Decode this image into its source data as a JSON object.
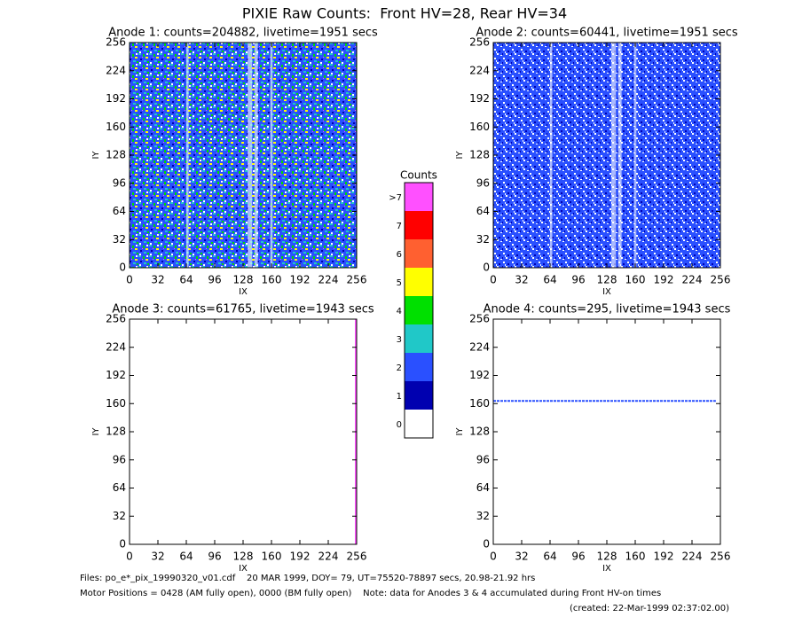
{
  "title": "PIXIE Raw Counts:  Front HV=28, Rear HV=34",
  "chart_data": [
    {
      "type": "heatmap",
      "title": "Anode 1: counts=204882, livetime=1951 secs",
      "x_label": "IX",
      "y_label": "IY",
      "xlim": [
        0,
        256
      ],
      "ylim": [
        0,
        256
      ],
      "xticks": [
        0,
        32,
        64,
        96,
        128,
        160,
        192,
        224,
        256
      ],
      "yticks": [
        0,
        32,
        64,
        96,
        128,
        160,
        192,
        224,
        256
      ]
    },
    {
      "type": "heatmap",
      "title": "Anode 2: counts=60441, livetime=1951 secs",
      "x_label": "IX",
      "y_label": "IY",
      "xlim": [
        0,
        256
      ],
      "ylim": [
        0,
        256
      ],
      "xticks": [
        0,
        32,
        64,
        96,
        128,
        160,
        192,
        224,
        256
      ],
      "yticks": [
        0,
        32,
        64,
        96,
        128,
        160,
        192,
        224,
        256
      ]
    },
    {
      "type": "heatmap",
      "title": "Anode 3: counts=61765, livetime=1943 secs",
      "x_label": "IX",
      "y_label": "IY",
      "xlim": [
        0,
        256
      ],
      "ylim": [
        0,
        256
      ],
      "xticks": [
        0,
        32,
        64,
        96,
        128,
        160,
        192,
        224,
        256
      ],
      "yticks": [
        0,
        32,
        64,
        96,
        128,
        160,
        192,
        224,
        256
      ],
      "vline": 256,
      "vline_color": "#ff50ff"
    },
    {
      "type": "heatmap",
      "title": "Anode 4: counts=295, livetime=1943 secs",
      "x_label": "IX",
      "y_label": "IY",
      "xlim": [
        0,
        256
      ],
      "ylim": [
        0,
        256
      ],
      "xticks": [
        0,
        32,
        64,
        96,
        128,
        160,
        192,
        224,
        256
      ],
      "yticks": [
        0,
        32,
        64,
        96,
        128,
        160,
        192,
        224,
        256
      ],
      "hline": 163,
      "hline_color": "#2a50ff"
    }
  ],
  "colorbar": {
    "title": "Counts",
    "labels": [
      "0",
      "1",
      "2",
      "3",
      "4",
      "5",
      "6",
      "7",
      ">7"
    ],
    "colors": [
      "#ffffff",
      "#0000b0",
      "#2a50ff",
      "#20c8c8",
      "#00e000",
      "#ffff00",
      "#ff6030",
      "#ff0000",
      "#ff50ff"
    ]
  },
  "footer": {
    "files": "Files: po_e*_pix_19990320_v01.cdf    20 MAR 1999, DOY= 79, UT=75520-78897 secs, 20.98-21.92 hrs",
    "motor": "Motor Positions = 0428 (AM fully open), 0000 (BM fully open)    Note: data for Anodes 3 & 4 accumulated during Front HV-on times",
    "created": "(created: 22-Mar-1999 02:37:02.00)"
  }
}
